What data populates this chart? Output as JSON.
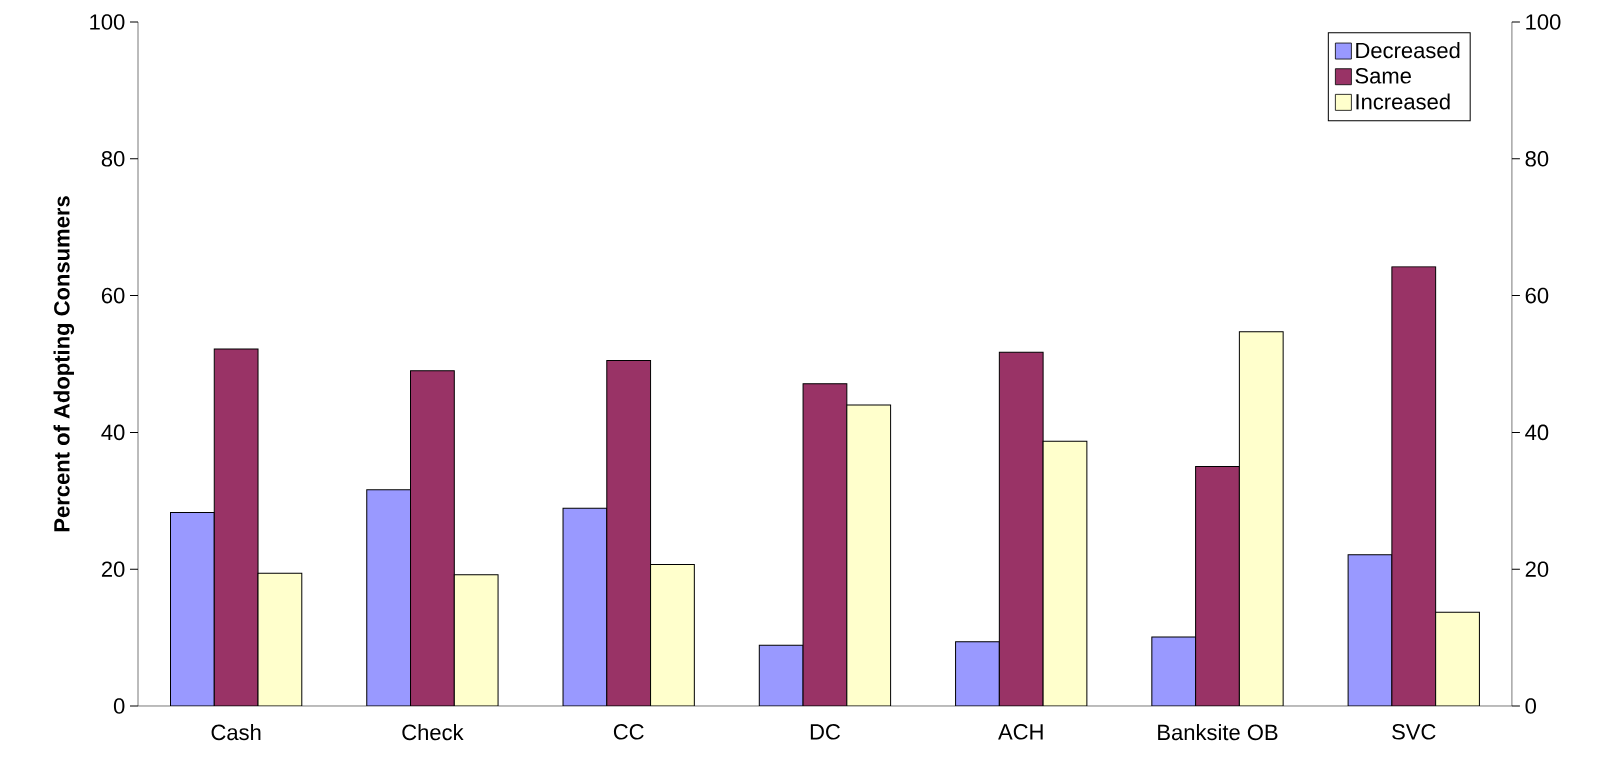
{
  "chart_data": {
    "type": "bar",
    "ylabel": "Percent of Adopting Consumers",
    "categories": [
      "Cash",
      "Check",
      "CC",
      "DC",
      "ACH",
      "Banksite OB",
      "SVC"
    ],
    "series": [
      {
        "name": "Decreased",
        "color": "#9999ff",
        "values": [
          28.3,
          31.6,
          28.9,
          8.9,
          9.4,
          10.1,
          22.1
        ]
      },
      {
        "name": "Same",
        "color": "#993366",
        "values": [
          52.2,
          49.0,
          50.5,
          47.1,
          51.7,
          35.0,
          64.2
        ]
      },
      {
        "name": "Increased",
        "color": "#ffffcc",
        "values": [
          19.4,
          19.2,
          20.7,
          44.0,
          38.7,
          54.7,
          13.7
        ]
      }
    ],
    "ylim": [
      0,
      100
    ],
    "yticks": [
      0,
      20,
      40,
      60,
      80,
      100
    ],
    "y2lim": [
      0,
      100
    ],
    "y2ticks": [
      0,
      20,
      40,
      60,
      80,
      100
    ],
    "grid": false,
    "legend": "top right"
  }
}
